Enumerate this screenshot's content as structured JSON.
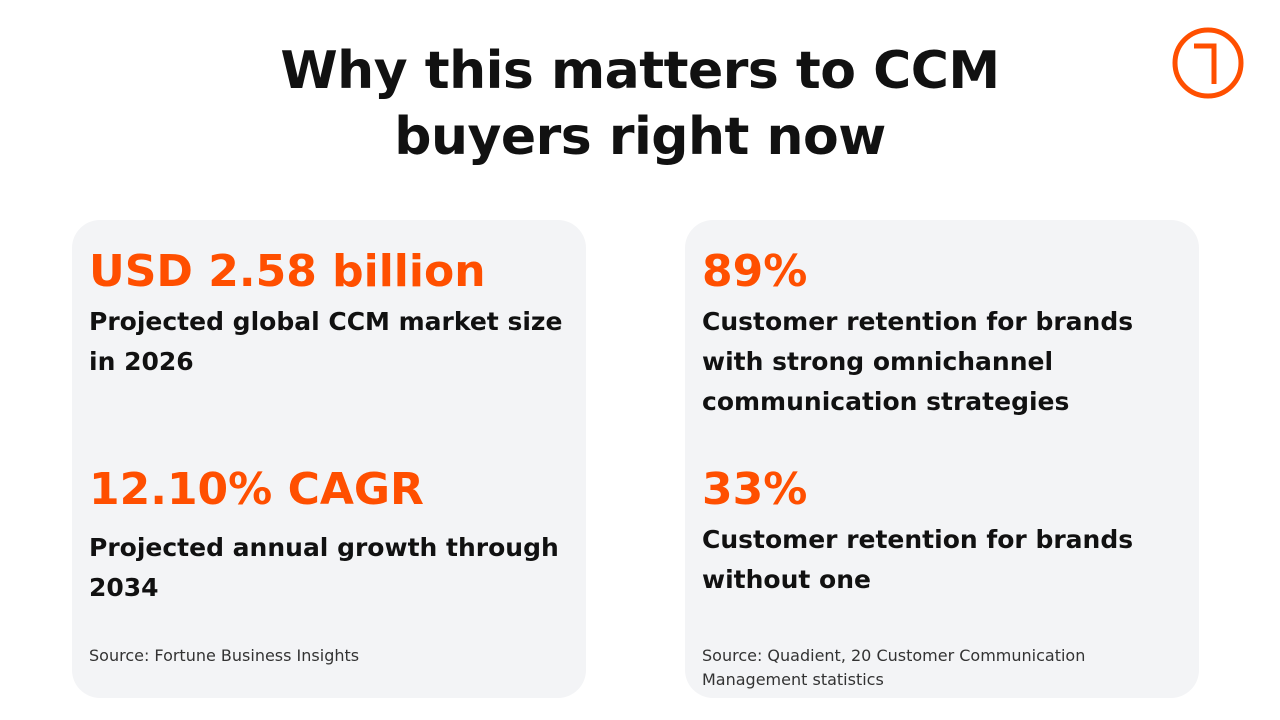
{
  "header": {
    "title": "Why this matters to CCM buyers right now"
  },
  "cards": [
    {
      "stats": [
        {
          "value": "USD 2.58 billion",
          "label": "Projected global CCM market size in 2026"
        },
        {
          "value": "12.10% CAGR",
          "label": "Projected annual growth through 2034"
        }
      ],
      "source": "Source: Fortune Business Insights"
    },
    {
      "stats": [
        {
          "value": "89%",
          "label": "Customer retention for brands with strong omnichannel communication strategies"
        },
        {
          "value": "33%",
          "label": "Customer retention for brands without one"
        }
      ],
      "source": "Source: Quadient, 20 Customer Communication Management statistics"
    }
  ]
}
